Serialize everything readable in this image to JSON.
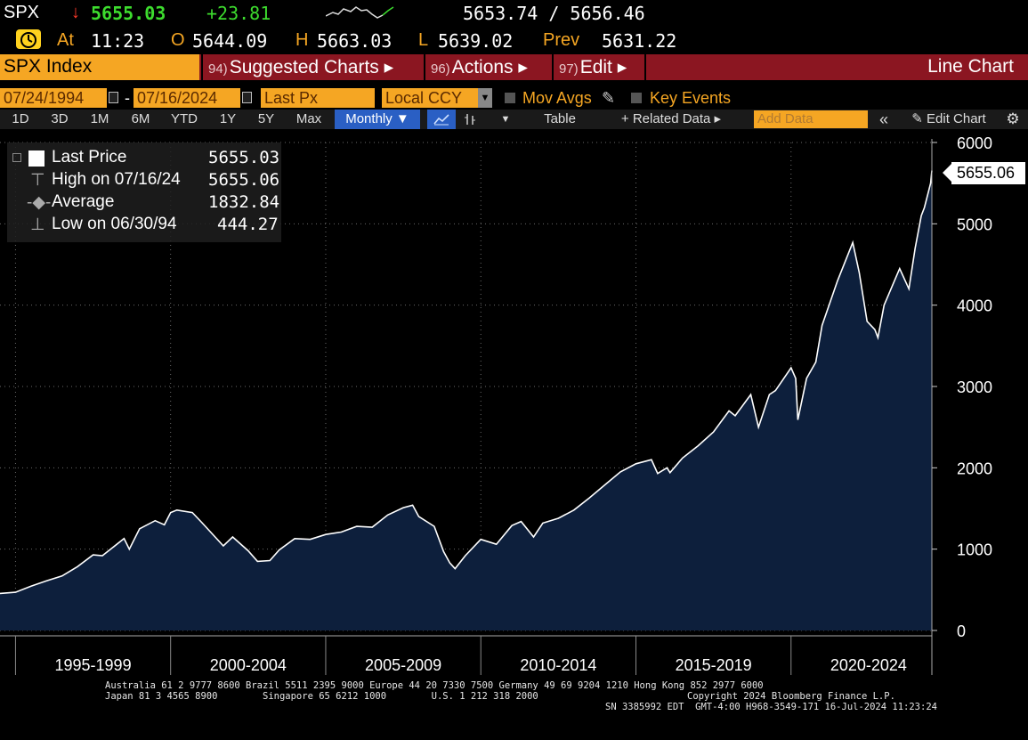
{
  "quote": {
    "ticker": "SPX",
    "arrow": "↓",
    "last": "5655.03",
    "change": "+23.81",
    "bid_ask": "5653.74 / 5656.46",
    "at_label": "At",
    "time": "11:23",
    "open_label": "O",
    "open": "5644.09",
    "high_label": "H",
    "high": "5663.03",
    "low_label": "L",
    "low": "5639.02",
    "prev_label": "Prev",
    "prev": "5631.22"
  },
  "menu": {
    "security": "SPX Index",
    "items": [
      {
        "num": "94)",
        "label": "Suggested Charts ▸"
      },
      {
        "num": "96)",
        "label": "Actions ▸"
      },
      {
        "num": "97)",
        "label": "Edit ▸"
      }
    ],
    "chart_type": "Line Chart"
  },
  "controls": {
    "start_date": "07/24/1994",
    "dash": "-",
    "end_date": "07/16/2024",
    "field": "Last Px",
    "currency": "Local CCY",
    "mov_avgs": "Mov Avgs",
    "key_events": "Key Events"
  },
  "toolbar": {
    "periods": [
      "1D",
      "3D",
      "1M",
      "6M",
      "YTD",
      "1Y",
      "5Y",
      "Max"
    ],
    "frequency": "Monthly ▼",
    "table": "Table",
    "related": "+ Related Data ▸",
    "add_data_placeholder": "Add Data",
    "collapse": "«",
    "edit_chart": "✎ Edit Chart",
    "gear": "⚙"
  },
  "legend": {
    "rows": [
      {
        "label": "Last Price",
        "value": "5655.03"
      },
      {
        "label": "High on 07/16/24",
        "value": "5655.06"
      },
      {
        "label": "Average",
        "value": "1832.84"
      },
      {
        "label": "Low on 06/30/94",
        "value": "444.27"
      }
    ]
  },
  "last_badge": "5655.06",
  "chart_data": {
    "type": "area",
    "title": "",
    "xlabel": "",
    "ylabel": "",
    "x_range": [
      1994.5,
      2024.54
    ],
    "ylim": [
      0,
      6000
    ],
    "y_ticks": [
      "0",
      "1000",
      "2000",
      "3000",
      "4000",
      "5000",
      "6000"
    ],
    "x_tick_labels": [
      "1995-1999",
      "2000-2004",
      "2005-2009",
      "2010-2014",
      "2015-2019",
      "2020-2024"
    ],
    "line_color": "#ffffff",
    "fill_color": "#0d1f3c",
    "grid": true,
    "series": [
      {
        "x": [
          1994.5,
          1995.0,
          1995.5,
          1996.0,
          1996.5,
          1997.0,
          1997.5,
          1997.8,
          1998.0,
          1998.5,
          1998.67,
          1999.0,
          1999.5,
          1999.8,
          2000.0,
          2000.2,
          2000.7,
          2001.0,
          2001.7,
          2002.0,
          2002.5,
          2002.8,
          2003.2,
          2003.5,
          2004.0,
          2004.5,
          2005.0,
          2005.5,
          2006.0,
          2006.5,
          2007.0,
          2007.5,
          2007.8,
          2008.0,
          2008.5,
          2008.8,
          2009.0,
          2009.17,
          2009.5,
          2010.0,
          2010.5,
          2011.0,
          2011.3,
          2011.7,
          2012.0,
          2012.5,
          2013.0,
          2013.5,
          2014.0,
          2014.5,
          2015.0,
          2015.5,
          2015.7,
          2016.0,
          2016.1,
          2016.5,
          2017.0,
          2017.5,
          2018.0,
          2018.2,
          2018.7,
          2018.95,
          2019.3,
          2019.5,
          2020.0,
          2020.15,
          2020.22,
          2020.5,
          2020.8,
          2021.0,
          2021.5,
          2021.99,
          2022.2,
          2022.45,
          2022.7,
          2022.8,
          2023.0,
          2023.5,
          2023.8,
          2024.0,
          2024.2,
          2024.3,
          2024.5,
          2024.54
        ],
        "y": [
          455,
          470,
          545,
          610,
          670,
          785,
          930,
          920,
          980,
          1130,
          1000,
          1250,
          1350,
          1300,
          1450,
          1480,
          1450,
          1330,
          1040,
          1150,
          980,
          850,
          860,
          990,
          1130,
          1120,
          1180,
          1210,
          1280,
          1270,
          1420,
          1510,
          1540,
          1400,
          1280,
          970,
          830,
          760,
          920,
          1120,
          1060,
          1290,
          1340,
          1150,
          1320,
          1380,
          1480,
          1630,
          1790,
          1950,
          2050,
          2100,
          1930,
          2000,
          1940,
          2120,
          2270,
          2440,
          2700,
          2640,
          2900,
          2500,
          2900,
          2950,
          3230,
          3100,
          2590,
          3100,
          3300,
          3750,
          4300,
          4770,
          4400,
          3800,
          3700,
          3600,
          4000,
          4450,
          4200,
          4700,
          5100,
          5200,
          5500,
          5655
        ]
      }
    ]
  },
  "footer": {
    "line1": "Australia 61 2 9777 8600 Brazil 5511 2395 9000 Europe 44 20 7330 7500 Germany 49 69 9204 1210 Hong Kong 852 2977 6000",
    "line2a": "Japan 81 3 4565 8900        Singapore 65 6212 1000        U.S. 1 212 318 2000",
    "line2b": "Copyright 2024 Bloomberg Finance L.P.",
    "line3": "SN 3385992 EDT  GMT-4:00 H968-3549-171 16-Jul-2024 11:23:24"
  }
}
